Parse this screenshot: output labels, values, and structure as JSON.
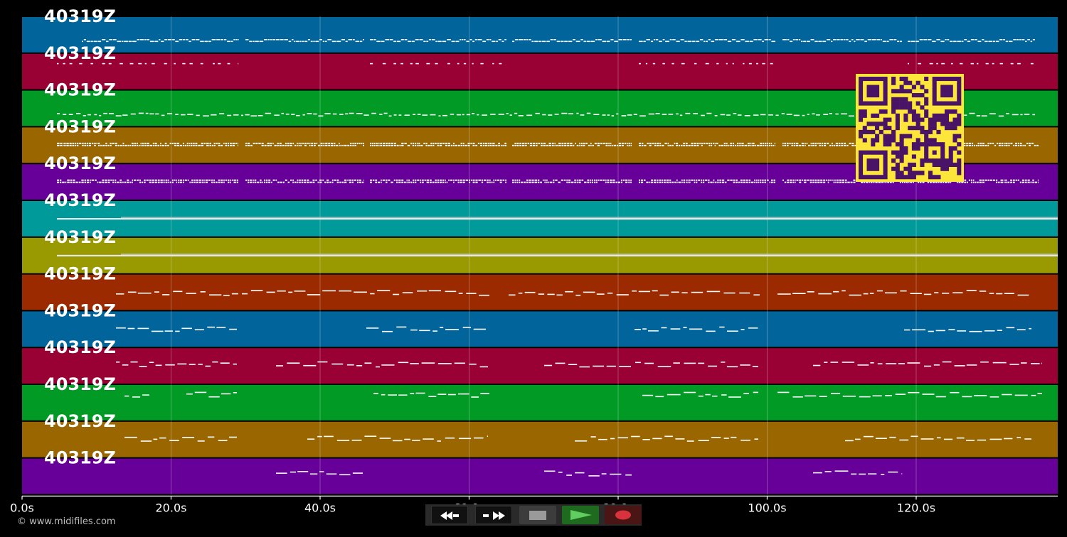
{
  "window": {
    "copyright": "© www.midifiles.com"
  },
  "colors": {
    "background": "#000000",
    "track_colors": [
      "#01659b",
      "#990033",
      "#019a25",
      "#996600",
      "#660099",
      "#019a9b",
      "#999901",
      "#9b2a00",
      "#01659b",
      "#990033",
      "#019a25",
      "#996600",
      "#660099"
    ],
    "note_color": "#ffffff",
    "qr_bg": "#fce639",
    "qr_fg": "#4a1466"
  },
  "tracks": [
    {
      "label": "40319Z"
    },
    {
      "label": "40319Z"
    },
    {
      "label": "40319Z"
    },
    {
      "label": "40319Z"
    },
    {
      "label": "40319Z"
    },
    {
      "label": "40319Z"
    },
    {
      "label": "40319Z"
    },
    {
      "label": "40319Z"
    },
    {
      "label": "40319Z"
    },
    {
      "label": "40319Z"
    },
    {
      "label": "40319Z"
    },
    {
      "label": "40319Z"
    },
    {
      "label": "40319Z"
    }
  ],
  "timeline": {
    "max_seconds": 139,
    "ticks": [
      {
        "value": 0,
        "label": "0.0s"
      },
      {
        "value": 20,
        "label": "20.0s"
      },
      {
        "value": 40,
        "label": "40.0s"
      },
      {
        "value": 60,
        "label": "60.0s"
      },
      {
        "value": 80,
        "label": "80.0s"
      },
      {
        "value": 100,
        "label": "100.0s"
      },
      {
        "value": 120,
        "label": "120.0s"
      }
    ]
  },
  "transport": {
    "rewind": "rewind-icon",
    "fast_forward": "fast-forward-icon",
    "stop": "stop-icon",
    "play": "play-icon",
    "record": "record-icon"
  },
  "qr_code": "qr-code-icon"
}
